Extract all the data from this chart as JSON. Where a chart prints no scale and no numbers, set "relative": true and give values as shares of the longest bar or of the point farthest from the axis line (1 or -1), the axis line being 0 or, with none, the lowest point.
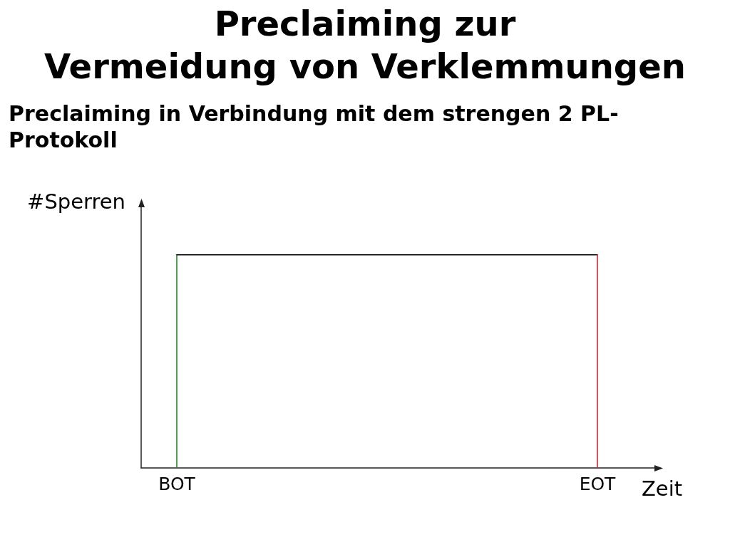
{
  "chart_data": {
    "type": "line",
    "title": "Preclaiming zur\nVermeidung von Verklemmungen",
    "subtitle": "Preclaiming in Verbindung mit dem strengen 2 PL-\nProtokoll",
    "xlabel": "Zeit",
    "ylabel": "#Sperren",
    "relative": true,
    "categories": [
      "BOT",
      "EOT"
    ],
    "series": [
      {
        "color": "#1e8c1e",
        "x": [
          "BOT",
          "BOT"
        ],
        "values": [
          0,
          1
        ]
      },
      {
        "color": "#000000",
        "x": [
          "BOT",
          "EOT"
        ],
        "values": [
          1,
          1
        ]
      },
      {
        "color": "#e0202a",
        "x": [
          "EOT",
          "EOT"
        ],
        "values": [
          1,
          0
        ]
      }
    ],
    "marker": "none",
    "line_style": "solid",
    "grid": false,
    "tick_labels": "x"
  }
}
